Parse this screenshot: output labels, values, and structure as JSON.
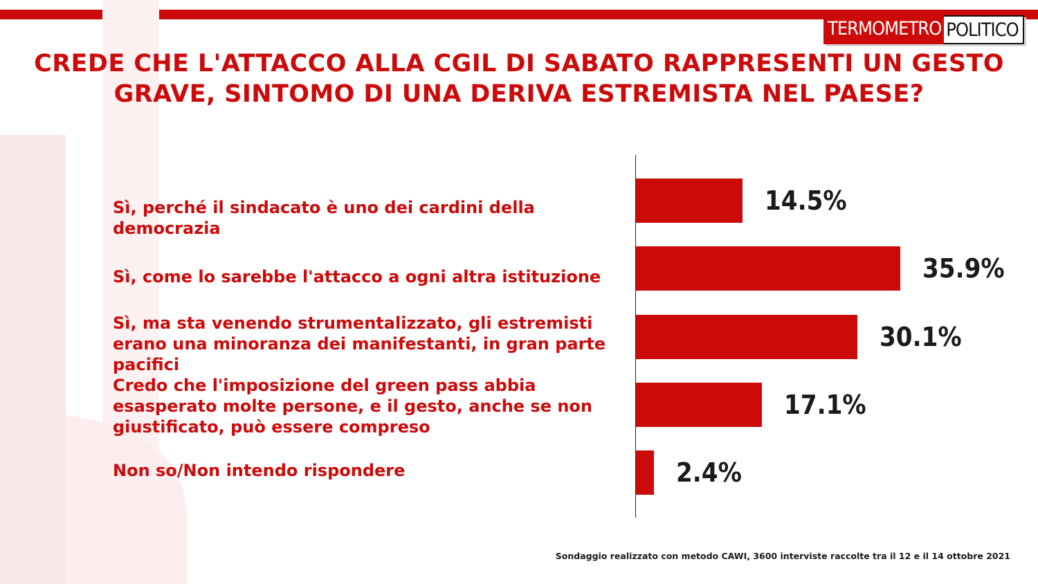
{
  "brand": {
    "part1": "TERMOMETRO",
    "part2": "POLITICO"
  },
  "chart_data": {
    "type": "bar",
    "title": "CREDE CHE L'ATTACCO ALLA CGIL DI SABATO RAPPRESENTI UN GESTO GRAVE, SINTOMO DI UNA DERIVA ESTREMISTA NEL PAESE?",
    "categories": [
      "Sì, perché il sindacato è uno dei cardini della democrazia",
      "Sì, come lo sarebbe l'attacco a ogni altra istituzione",
      "Sì, ma sta venendo strumentalizzato, gli estremisti erano una minoranza dei manifestanti, in gran parte pacifici",
      "Credo che l'imposizione del green pass abbia esasperato molte persone, e il gesto, anche se non giustificato, può essere compreso",
      "Non so/Non intendo rispondere"
    ],
    "values": [
      14.5,
      35.9,
      30.1,
      17.1,
      2.4
    ],
    "value_labels": [
      "14.5%",
      "35.9%",
      "30.1%",
      "17.1%",
      "2.4%"
    ],
    "orientation": "horizontal",
    "bar_color": "#cc0a0a",
    "xlim": [
      0,
      35.9
    ]
  },
  "footnote": "Sondaggio realizzato con metodo CAWI, 3600 interviste raccolte tra il 12 e il 14  ottobre 2021"
}
